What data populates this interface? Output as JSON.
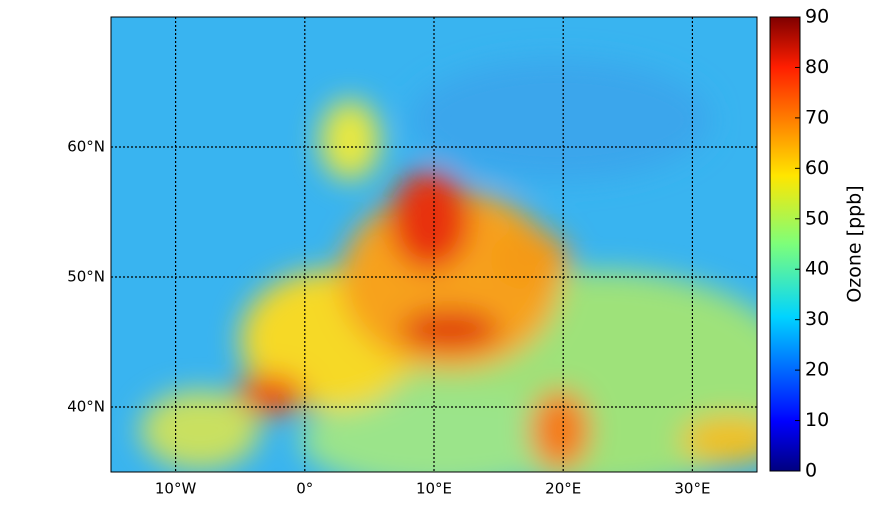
{
  "map": {
    "xlim": [
      -15,
      35
    ],
    "ylim": [
      35,
      70
    ],
    "xticks": [
      {
        "value": -10,
        "label": "10°W"
      },
      {
        "value": 0,
        "label": "0°"
      },
      {
        "value": 10,
        "label": "10°E"
      },
      {
        "value": 20,
        "label": "20°E"
      },
      {
        "value": 30,
        "label": "30°E"
      }
    ],
    "yticks": [
      {
        "value": 40,
        "label": "40°N"
      },
      {
        "value": 50,
        "label": "50°N"
      },
      {
        "value": 60,
        "label": "60°N"
      }
    ],
    "grid": true
  },
  "colorbar": {
    "label": "Ozone [ppb]",
    "lim": [
      0,
      90
    ],
    "ticks": [
      0,
      10,
      20,
      30,
      40,
      50,
      60,
      70,
      80,
      90
    ]
  }
}
